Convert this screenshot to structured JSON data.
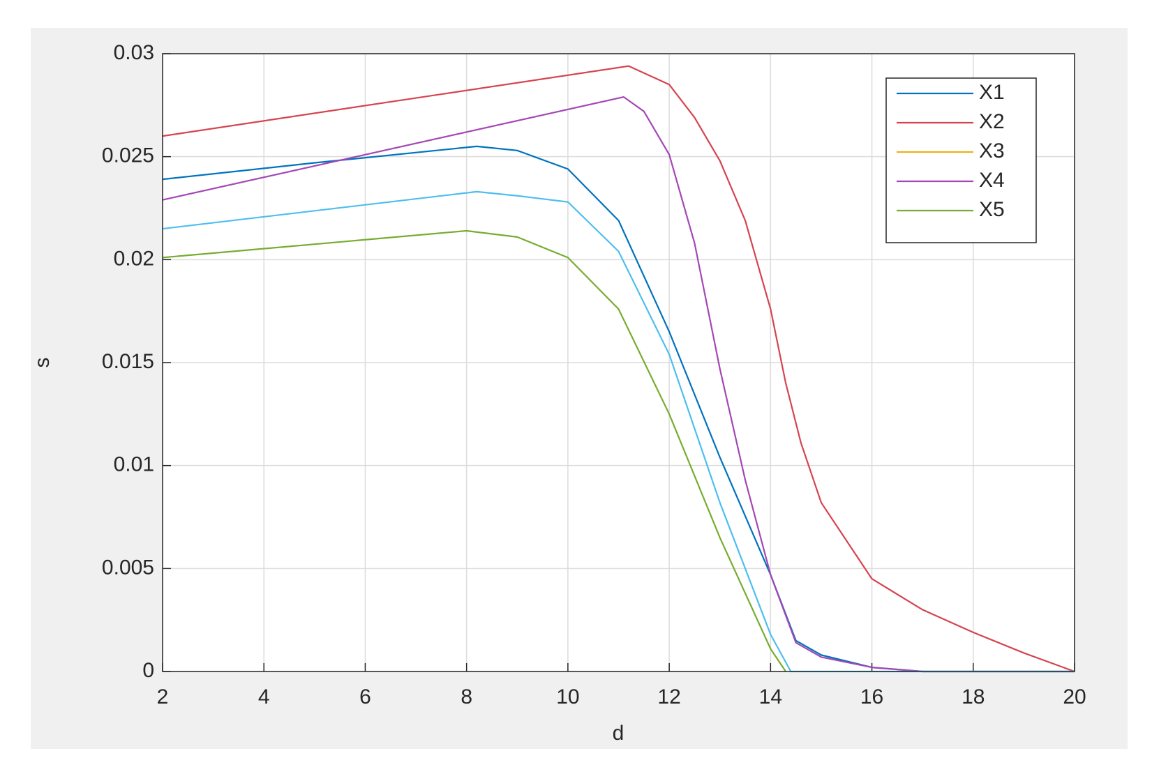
{
  "chart_data": {
    "type": "line",
    "xlabel": "d",
    "ylabel": "s",
    "xlim": [
      2,
      20
    ],
    "xticks": [
      2,
      4,
      6,
      8,
      10,
      12,
      14,
      16,
      18,
      20
    ],
    "ylim": [
      0,
      0.03
    ],
    "yticks": [
      0,
      0.005,
      0.01,
      0.015,
      0.02,
      0.025,
      0.03
    ],
    "grid": true,
    "legend": "northeast",
    "series": [
      {
        "name": "X1",
        "color": "#0072bd",
        "x": [
          2,
          5,
          8.2,
          9,
          10,
          11,
          12,
          13,
          14,
          14.5,
          15,
          16,
          17,
          20
        ],
        "values": [
          0.0239,
          0.0247,
          0.0255,
          0.0253,
          0.0244,
          0.0219,
          0.0165,
          0.0104,
          0.0047,
          0.0015,
          0.0008,
          0.0002,
          0,
          0
        ]
      },
      {
        "name": "X2",
        "color": "#d6434f",
        "x": [
          2,
          11.2,
          12,
          12.5,
          13,
          13.5,
          14,
          14.3,
          14.6,
          15,
          16,
          17,
          18,
          19,
          20
        ],
        "values": [
          0.026,
          0.0294,
          0.0285,
          0.0269,
          0.0248,
          0.0219,
          0.0176,
          0.014,
          0.0111,
          0.0082,
          0.0045,
          0.003,
          0.0019,
          0.0009,
          0
        ]
      },
      {
        "name": "X3",
        "color": "#edb120",
        "x": [
          2,
          20
        ],
        "values": [
          null,
          null
        ]
      },
      {
        "name": "X4",
        "color": "#a347b5",
        "x": [
          2,
          11.1,
          11.5,
          12,
          12.5,
          13,
          13.5,
          14,
          14.5,
          15,
          16,
          17,
          20
        ],
        "values": [
          0.0229,
          0.0279,
          0.0272,
          0.0251,
          0.0208,
          0.0147,
          0.0093,
          0.0047,
          0.0014,
          0.0007,
          0.0002,
          0,
          0
        ]
      },
      {
        "color": "#4dbeee",
        "x": [
          2,
          8.2,
          9,
          10,
          11,
          12,
          13,
          14,
          14.4,
          20
        ],
        "values": [
          0.0215,
          0.0233,
          0.0231,
          0.0228,
          0.0204,
          0.0154,
          0.0082,
          0.0018,
          0,
          0
        ]
      },
      {
        "name": "X5",
        "color": "#77ac30",
        "x": [
          2,
          8,
          9,
          10,
          11,
          12,
          13,
          14,
          14.3
        ],
        "values": [
          0.0201,
          0.0214,
          0.0211,
          0.0201,
          0.0176,
          0.0125,
          0.0065,
          0.0011,
          0
        ]
      }
    ]
  }
}
